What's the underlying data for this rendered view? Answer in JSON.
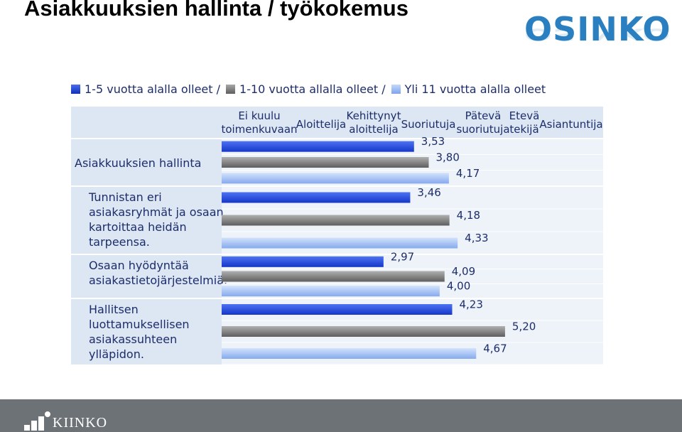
{
  "slide": {
    "title": "Asiakkuuksien hallinta / työkokemus",
    "logo_text": "OSINKO",
    "footer_logo_text": "KIINKO"
  },
  "chart_data": {
    "type": "bar",
    "orientation": "horizontal",
    "legend": {
      "placement": "top",
      "entries": [
        "1-5 vuotta alalla olleet /",
        "1-10 vuotta allalla olleet /",
        "Yli 11 vuotta alalla olleet"
      ]
    },
    "scale_labels": [
      {
        "value": 1,
        "lines": [
          "Ei kuulu",
          "toimenkuvaan"
        ]
      },
      {
        "value": 2,
        "lines": [
          "Aloittelija"
        ]
      },
      {
        "value": 3,
        "lines": [
          "Kehittynyt",
          "aloittelija"
        ]
      },
      {
        "value": 4,
        "lines": [
          "Suoriutuja"
        ]
      },
      {
        "value": 5,
        "lines": [
          "Pätevä",
          "suoriutuja"
        ]
      },
      {
        "value": 6,
        "lines": [
          "Etevä",
          "tekijä"
        ]
      },
      {
        "value": 7,
        "lines": [
          "Asiantuntija"
        ]
      }
    ],
    "xlim": [
      0,
      7
    ],
    "grid": true,
    "series": [
      {
        "name": "1-5 vuotta alalla olleet",
        "color": "#1e49e0"
      },
      {
        "name": "1-10 vuotta allalla olleet",
        "color": "#7f7f7f"
      },
      {
        "name": "Yli 11 vuotta alalla olleet",
        "color": "#8fb5f2"
      }
    ],
    "groups": [
      {
        "label": [
          "Asiakkuuksien hallinta"
        ],
        "header": true,
        "values": [
          3.53,
          3.8,
          4.17
        ],
        "labels": [
          "3,53",
          "3,80",
          "4,17"
        ]
      },
      {
        "label": [
          "Tunnistan eri",
          "asiakasryhmät ja osaan",
          "kartoittaa heidän",
          "tarpeensa."
        ],
        "header": false,
        "values": [
          3.46,
          4.18,
          4.33
        ],
        "labels": [
          "3,46",
          "4,18",
          "4,33"
        ]
      },
      {
        "label": [
          "Osaan hyödyntää",
          "asiakastietojärjestelmiä."
        ],
        "header": false,
        "values": [
          2.97,
          4.09,
          4.0
        ],
        "labels": [
          "2,97",
          "4,09",
          "4,00"
        ]
      },
      {
        "label": [
          "Hallitsen",
          "luottamuksellisen",
          "asiakassuhteen",
          "ylläpidon."
        ],
        "header": false,
        "values": [
          4.23,
          5.2,
          4.67
        ],
        "labels": [
          "4,23",
          "5,20",
          "4,67"
        ]
      }
    ]
  }
}
